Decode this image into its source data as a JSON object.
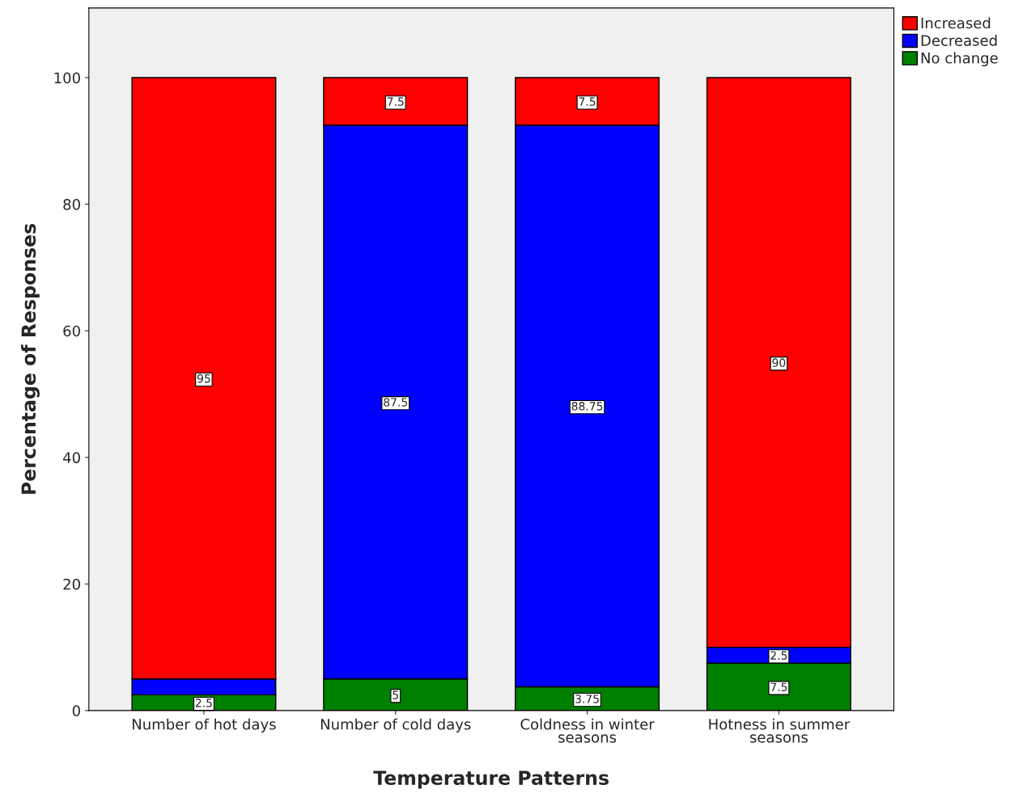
{
  "chart_data": {
    "type": "bar",
    "stacked": true,
    "xlabel": "Temperature Patterns",
    "ylabel": "Percentage of Responses",
    "categories": [
      "Number of hot days",
      "Number of cold days",
      "Coldness in winter\nseasons",
      "Hotness in summer\nseasons"
    ],
    "series": [
      {
        "name": "No change",
        "color": "#008000",
        "values": [
          2.5,
          5,
          3.75,
          7.5
        ],
        "value_labels": [
          "2.5",
          "5",
          "3.75",
          "7.5"
        ]
      },
      {
        "name": "Decreased",
        "color": "#0000ff",
        "values": [
          2.5,
          87.5,
          88.75,
          2.5
        ],
        "value_labels": [
          null,
          "87.5",
          "88.75",
          "2.5"
        ]
      },
      {
        "name": "Increased",
        "color": "#ff0000",
        "values": [
          95,
          7.5,
          7.5,
          90
        ],
        "value_labels": [
          "95",
          "7.5",
          "7.5",
          "90"
        ]
      }
    ],
    "ylim": [
      0,
      111
    ],
    "yticks": [
      0,
      20,
      40,
      60,
      80,
      100
    ],
    "legend": "top right",
    "grid": false
  }
}
